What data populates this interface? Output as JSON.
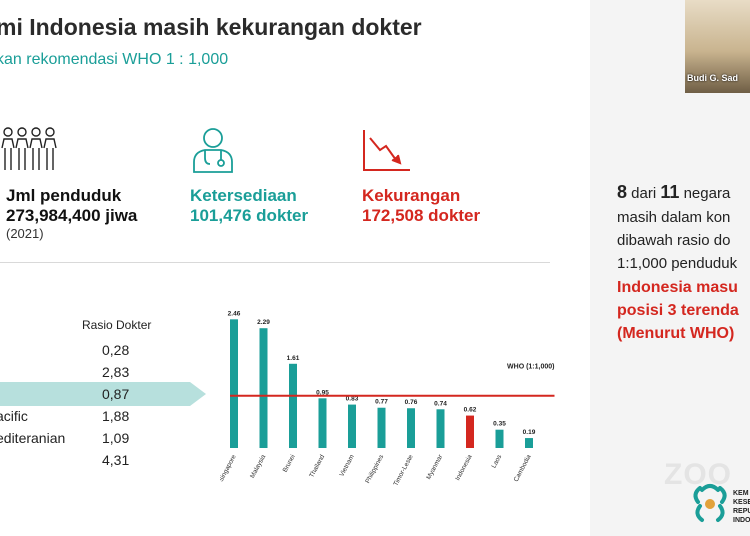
{
  "slide": {
    "title": "mi Indonesia masih kekurangan dokter",
    "subtitle": "kan rekomendasi WHO 1 : 1,000"
  },
  "stats": {
    "population": {
      "label": "Jml penduduk",
      "value": "273,984,400 jiwa",
      "note": "(2021)",
      "icon": "people-icon"
    },
    "available": {
      "label": "Ketersediaan",
      "value": "101,476 dokter",
      "icon": "doctor-icon"
    },
    "shortage": {
      "label": "Kekurangan",
      "value": "172,508 dokter",
      "icon": "declining-chart-icon"
    }
  },
  "ratio_table": {
    "header": "Rasio Dokter",
    "rows": [
      {
        "name": "",
        "value": "0,28"
      },
      {
        "name": "",
        "value": "2,83"
      },
      {
        "name": "",
        "value": "0,87"
      },
      {
        "name": "acific",
        "value": "1,88"
      },
      {
        "name": "editeranian",
        "value": "1,09"
      },
      {
        "name": "",
        "value": "4,31"
      }
    ]
  },
  "chart_data": {
    "type": "bar",
    "categories": [
      "Singapore",
      "Malaysia",
      "Brunei",
      "Thailand",
      "Vietnam",
      "Philippines",
      "Timor-Leste",
      "Myanmar",
      "Indonesia",
      "Laos",
      "Cambodia"
    ],
    "values": [
      2.46,
      2.29,
      1.61,
      0.95,
      0.83,
      0.77,
      0.76,
      0.74,
      0.62,
      0.35,
      0.19
    ],
    "value_labels": [
      "2.46",
      "2.29",
      "1.61",
      "0.95",
      "0.83",
      "0.77",
      "0.76",
      "0.74",
      "0.62",
      "0.35",
      "0.19"
    ],
    "highlight": "Indonesia",
    "reference_line": {
      "label": "WHO (1:1,000)",
      "value": 1.0
    },
    "ylim": [
      0,
      2.6
    ],
    "colors": {
      "bar": "#1a9e98",
      "highlight": "#d4271f",
      "line": "#d4271f"
    }
  },
  "right_panel": {
    "lines": [
      {
        "prefix": "8",
        "mid": " dari ",
        "strong": "11",
        "suffix": " negara"
      },
      {
        "text": "masih dalam kon"
      },
      {
        "text": "dibawah rasio do"
      },
      {
        "text": "1:1,000 penduduk"
      }
    ],
    "red_lines": [
      "Indonesia masu",
      "posisi 3 terenda",
      "(Menurut WHO)"
    ]
  },
  "video": {
    "name": "Budi G. Sad"
  },
  "watermark": "ZOO",
  "logo_lines": [
    "KEM",
    "KESE",
    "REPU",
    "INDO"
  ],
  "colors": {
    "teal": "#1a9e98",
    "red": "#d4271f",
    "highlight_bg": "#b7e0dd"
  }
}
